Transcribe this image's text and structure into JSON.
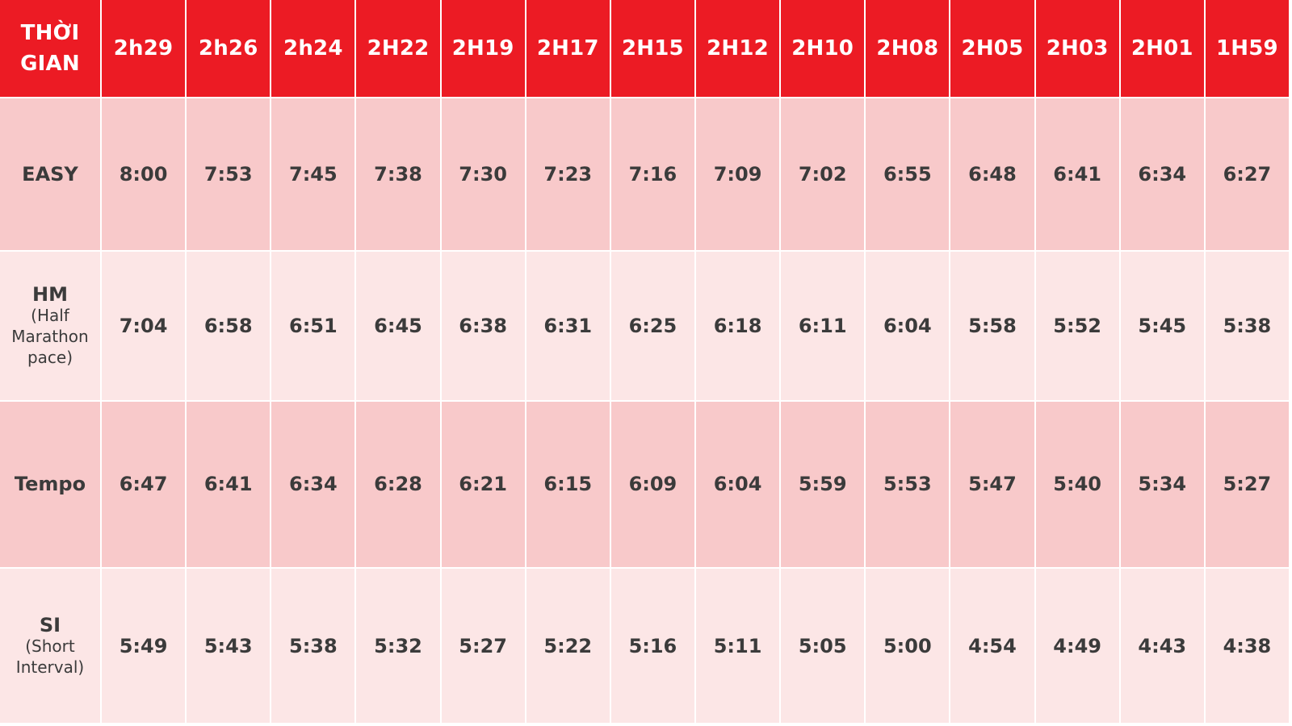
{
  "header": {
    "first_col_line1": "THỜI",
    "first_col_line2": "GIAN",
    "times": [
      "2h29",
      "2h26",
      "2h24",
      "2H22",
      "2H19",
      "2H17",
      "2H15",
      "2H12",
      "2H10",
      "2H08",
      "2H05",
      "2H03",
      "2H01",
      "1H59"
    ]
  },
  "rows": [
    {
      "label": "EASY",
      "sub_lines": [],
      "values": [
        "8:00",
        "7:53",
        "7:45",
        "7:38",
        "7:30",
        "7:23",
        "7:16",
        "7:09",
        "7:02",
        "6:55",
        "6:48",
        "6:41",
        "6:34",
        "6:27"
      ]
    },
    {
      "label": "HM",
      "sub_lines": [
        "(Half",
        "Marathon",
        "pace)"
      ],
      "values": [
        "7:04",
        "6:58",
        "6:51",
        "6:45",
        "6:38",
        "6:31",
        "6:25",
        "6:18",
        "6:11",
        "6:04",
        "5:58",
        "5:52",
        "5:45",
        "5:38"
      ]
    },
    {
      "label": "Tempo",
      "sub_lines": [],
      "values": [
        "6:47",
        "6:41",
        "6:34",
        "6:28",
        "6:21",
        "6:15",
        "6:09",
        "6:04",
        "5:59",
        "5:53",
        "5:47",
        "5:40",
        "5:34",
        "5:27"
      ]
    },
    {
      "label": "SI",
      "sub_lines": [
        "(Short",
        "Interval)"
      ],
      "values": [
        "5:49",
        "5:43",
        "5:38",
        "5:32",
        "5:27",
        "5:22",
        "5:16",
        "5:11",
        "5:05",
        "5:00",
        "4:54",
        "4:49",
        "4:43",
        "4:38"
      ]
    }
  ],
  "colors": {
    "header_red": "#ec1b24",
    "row_dark": "#f8c9ca",
    "row_light": "#fce6e6",
    "text": "#3b3b3b"
  }
}
